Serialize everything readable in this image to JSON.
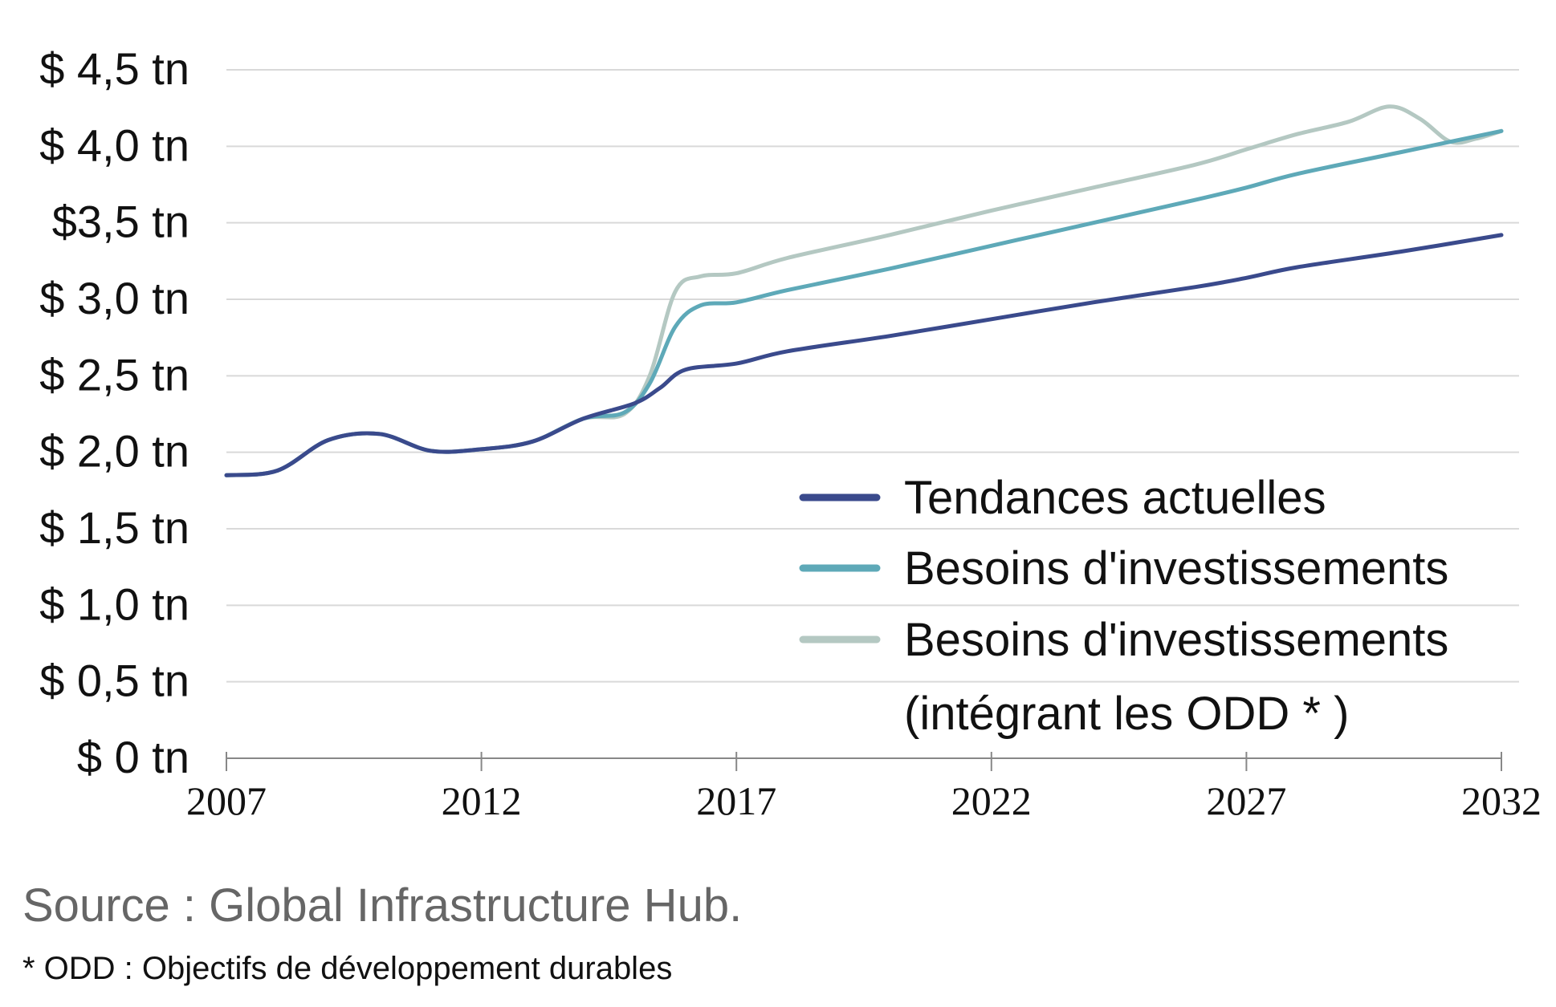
{
  "chart_data": {
    "type": "line",
    "x_ticks": [
      "2007",
      "2012",
      "2017",
      "2022",
      "2027",
      "2032"
    ],
    "y_ticks": [
      {
        "value": 0,
        "label": "$ 0 tn"
      },
      {
        "value": 0.5,
        "label": "$ 0,5 tn"
      },
      {
        "value": 1.0,
        "label": "$ 1,0 tn"
      },
      {
        "value": 1.5,
        "label": "$ 1,5 tn"
      },
      {
        "value": 2.0,
        "label": "$ 2,0 tn"
      },
      {
        "value": 2.5,
        "label": "$ 2,5 tn"
      },
      {
        "value": 3.0,
        "label": "$ 3,0 tn"
      },
      {
        "value": 3.5,
        "label": "$3,5 tn"
      },
      {
        "value": 4.0,
        "label": "$ 4,0 tn"
      },
      {
        "value": 4.5,
        "label": "$ 4,5 tn"
      }
    ],
    "xlim": [
      2007,
      2032
    ],
    "ylim": [
      0,
      4.5
    ],
    "grid": true,
    "legend_position": "bottom-right",
    "series": [
      {
        "name": "Tendances actuelles",
        "color": "#3a4a8c",
        "x": [
          2007,
          2008,
          2009,
          2010,
          2011,
          2012,
          2013,
          2014,
          2015,
          2015.5,
          2016,
          2017,
          2018,
          2020,
          2022,
          2024,
          2026,
          2027,
          2028,
          2030,
          2032
        ],
        "y": [
          1.85,
          1.88,
          2.08,
          2.12,
          2.01,
          2.02,
          2.07,
          2.22,
          2.32,
          2.42,
          2.54,
          2.58,
          2.66,
          2.76,
          2.87,
          2.98,
          3.08,
          3.14,
          3.21,
          3.31,
          3.42
        ]
      },
      {
        "name": "Besoins d'investissements",
        "color": "#5ea9b8",
        "x": [
          2007,
          2008,
          2009,
          2010,
          2011,
          2012,
          2013,
          2014,
          2014.8,
          2015.3,
          2015.8,
          2016.3,
          2017,
          2018,
          2020,
          2022,
          2024,
          2026,
          2027,
          2028,
          2030,
          2032
        ],
        "y": [
          1.85,
          1.88,
          2.08,
          2.12,
          2.01,
          2.02,
          2.07,
          2.22,
          2.26,
          2.45,
          2.82,
          2.96,
          2.98,
          3.06,
          3.2,
          3.35,
          3.5,
          3.65,
          3.73,
          3.82,
          3.96,
          4.1
        ]
      },
      {
        "name": "Besoins d'investissements (intégrant les ODD * )",
        "color": "#b4c8c2",
        "x": [
          2007,
          2008,
          2009,
          2010,
          2011,
          2012,
          2013,
          2014,
          2014.8,
          2015.3,
          2015.8,
          2016.3,
          2017,
          2018,
          2020,
          2022,
          2024,
          2026,
          2027,
          2028,
          2029,
          2029.8,
          2030.4,
          2031,
          2031.5,
          2032
        ],
        "y": [
          1.85,
          1.88,
          2.08,
          2.12,
          2.01,
          2.02,
          2.07,
          2.22,
          2.25,
          2.5,
          3.05,
          3.15,
          3.17,
          3.27,
          3.42,
          3.58,
          3.73,
          3.88,
          3.98,
          4.08,
          4.16,
          4.26,
          4.18,
          4.03,
          4.05,
          4.1
        ]
      }
    ],
    "legend": [
      {
        "line1": "Tendances actuelles",
        "line2": ""
      },
      {
        "line1": "Besoins d'investissements",
        "line2": ""
      },
      {
        "line1": "Besoins d'investissements",
        "line2": "(intégrant les ODD * )"
      }
    ]
  },
  "source": "Source : Global Infrastructure Hub.",
  "footnote": "* ODD : Objectifs de développement durables"
}
